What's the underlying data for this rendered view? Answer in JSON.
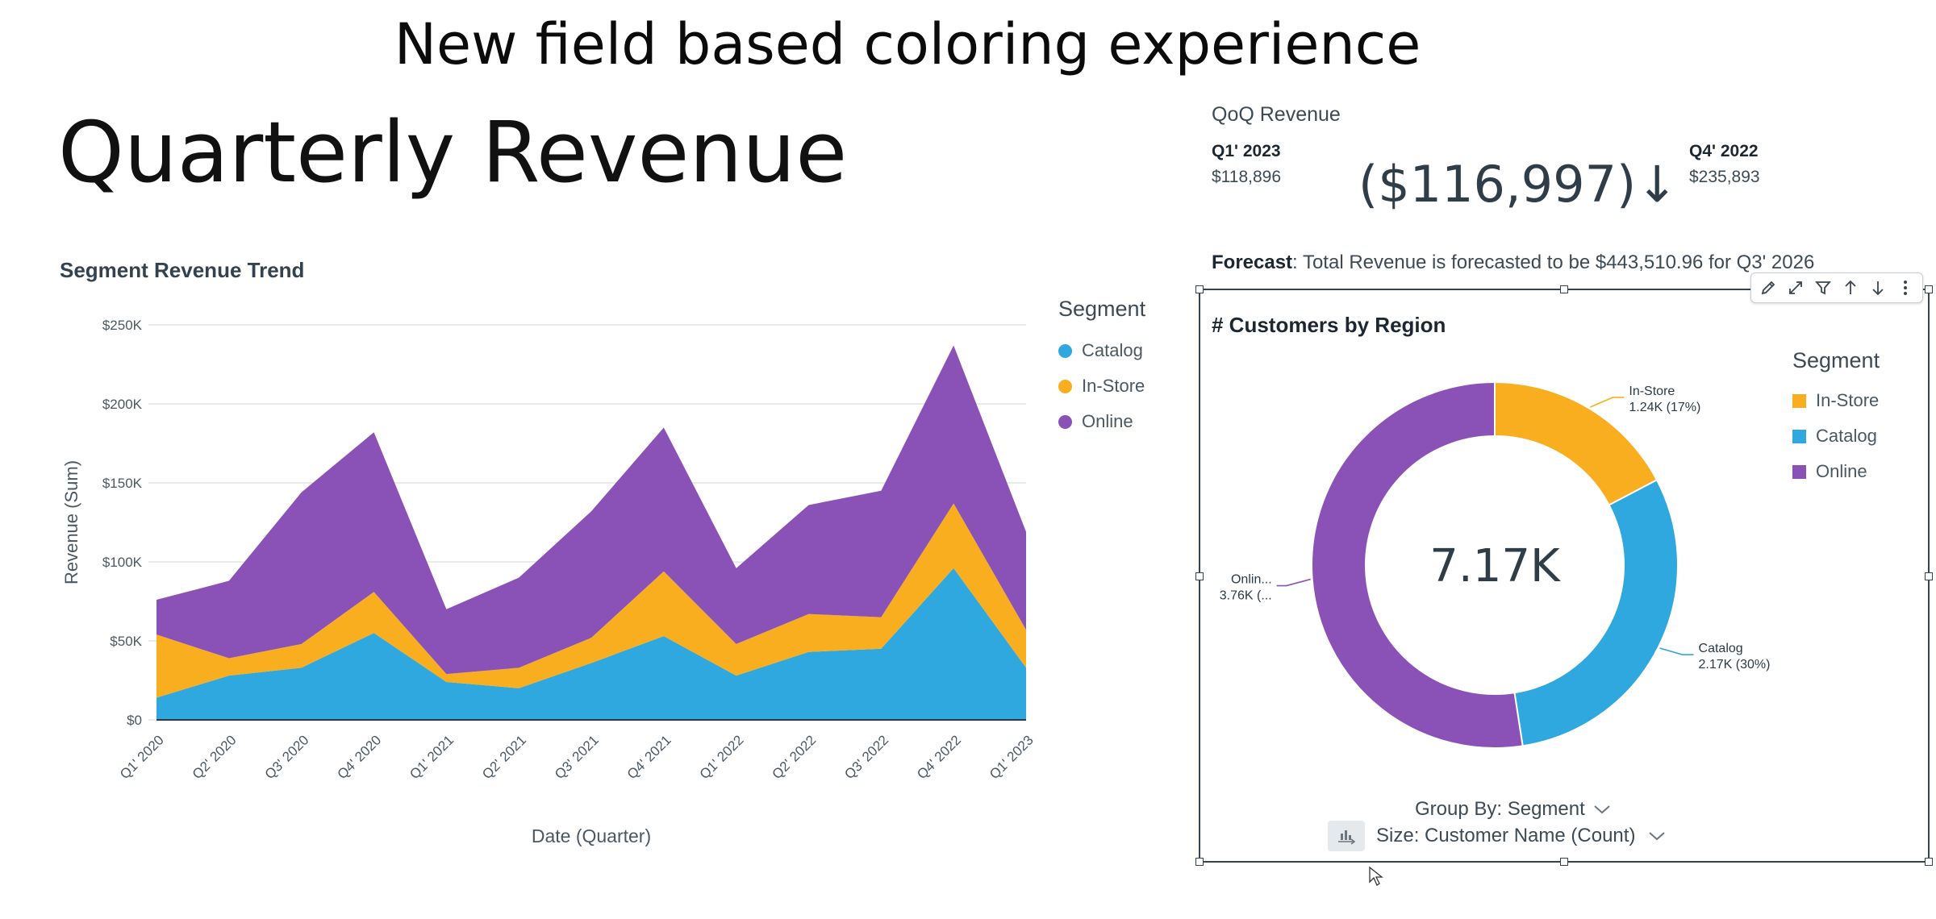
{
  "banner": "New field based coloring experience",
  "page_title": "Quarterly Revenue",
  "area_chart": {
    "title": "Segment Revenue Trend",
    "legend_title": "Segment",
    "y_ticks": [
      "$250K",
      "$200K",
      "$150K",
      "$100K",
      "$50K",
      "$0"
    ],
    "y_label": "Revenue (Sum)",
    "x_label": "Date (Quarter)"
  },
  "chart_data": [
    {
      "type": "area",
      "title": "Segment Revenue Trend",
      "xlabel": "Date (Quarter)",
      "ylabel": "Revenue (Sum)",
      "stacked": true,
      "ylim": [
        0,
        250000
      ],
      "categories": [
        "Q1' 2020",
        "Q2' 2020",
        "Q3' 2020",
        "Q4' 2020",
        "Q1' 2021",
        "Q2' 2021",
        "Q3' 2021",
        "Q4' 2021",
        "Q1' 2022",
        "Q2' 2022",
        "Q3' 2022",
        "Q4' 2022",
        "Q1' 2023"
      ],
      "series": [
        {
          "name": "Catalog",
          "color": "#2ea8de",
          "values": [
            14000,
            28000,
            33000,
            55000,
            24000,
            20000,
            36000,
            53000,
            28000,
            43000,
            45000,
            96000,
            33000
          ]
        },
        {
          "name": "In-Store",
          "color": "#f8ae1e",
          "values": [
            40000,
            11000,
            15000,
            26000,
            5000,
            13000,
            16000,
            41000,
            20000,
            24000,
            20000,
            41000,
            24000
          ]
        },
        {
          "name": "Online",
          "color": "#8a51b7",
          "values": [
            22000,
            49000,
            96000,
            101000,
            41000,
            57000,
            80000,
            91000,
            48000,
            69000,
            80000,
            100000,
            62000
          ]
        }
      ],
      "grid": true,
      "legend": "right"
    },
    {
      "type": "pie",
      "title": "# Customers by Region",
      "donut": true,
      "center_label": "7.17K",
      "slices": [
        {
          "name": "In-Store",
          "color": "#f8ae1e",
          "value": 1240,
          "label": "1.24K (17%)",
          "callout_name": "In-Store"
        },
        {
          "name": "Catalog",
          "color": "#2ea8de",
          "value": 2170,
          "label": "2.17K (30%)",
          "callout_name": "Catalog"
        },
        {
          "name": "Online",
          "color": "#8a51b7",
          "value": 3760,
          "label": "3.76K (...",
          "callout_name": "Onlin..."
        }
      ],
      "legend": "right"
    }
  ],
  "kpi": {
    "title": "QoQ Revenue",
    "left_label": "Q1' 2023",
    "left_value": "$118,896",
    "delta": "($116,997)↓",
    "right_label": "Q4' 2022",
    "right_value": "$235,893"
  },
  "forecast": {
    "label": "Forecast",
    "text": ": Total Revenue is forecasted to be $443,510.96 for Q3' 2026"
  },
  "donut": {
    "title": "# Customers by Region",
    "legend_title": "Segment",
    "legend_items": [
      {
        "name": "In-Store",
        "color": "#f8ae1e"
      },
      {
        "name": "Catalog",
        "color": "#2ea8de"
      },
      {
        "name": "Online",
        "color": "#8a51b7"
      }
    ],
    "group_by": "Group By: Segment",
    "size": "Size: Customer Name (Count)"
  },
  "toolbar_icons": [
    "pencil-icon",
    "expand-icon",
    "filter-icon",
    "arrow-up-icon",
    "arrow-down-icon",
    "more-vertical-icon"
  ]
}
